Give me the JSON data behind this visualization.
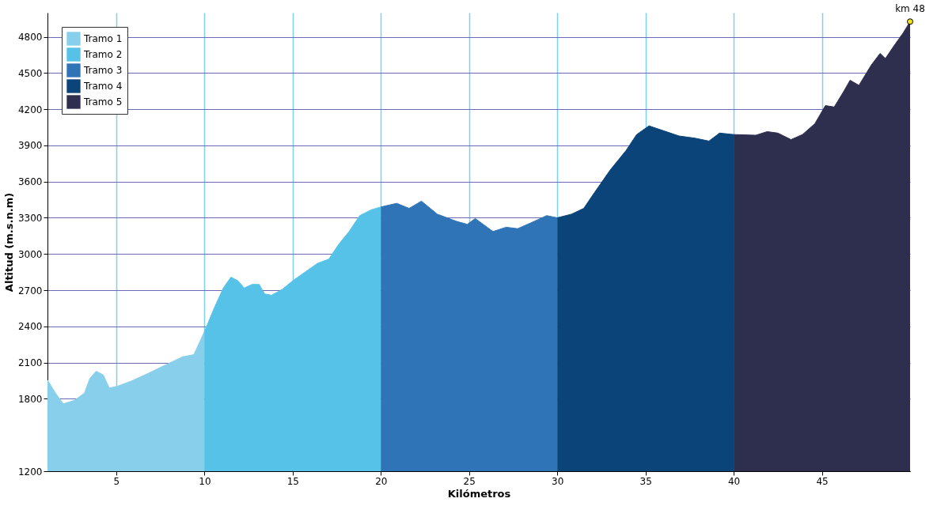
{
  "chart_data": {
    "type": "area",
    "xlabel": "Kilómetros",
    "ylabel": "Altitud (m.s.n.m)",
    "xlim": [
      1.1,
      50
    ],
    "xticks": [
      5,
      10,
      15,
      20,
      25,
      30,
      35,
      40,
      45
    ],
    "ylim": [
      1200,
      5000
    ],
    "yticks": [
      1200,
      1800,
      2100,
      2400,
      2700,
      3000,
      3300,
      3600,
      3900,
      4200,
      4500,
      4800
    ],
    "grid": true,
    "legend": "top left",
    "series": [
      {
        "name": "Tramo 1",
        "color": "#87cfea",
        "x": [
          1.1,
          1.55,
          2.0,
          2.64,
          3.2,
          3.5,
          3.86,
          4.26,
          4.6,
          5.04,
          5.9,
          6.8,
          7.9,
          8.76,
          9.4,
          10
        ],
        "values": [
          1956,
          1848,
          1758,
          1788,
          1848,
          1968,
          2028,
          1998,
          1890,
          1902,
          1950,
          2010,
          2088,
          2148,
          2166,
          2358
        ]
      },
      {
        "name": "Tramo 2",
        "color": "#56c2e8",
        "x": [
          10,
          10.6,
          11.07,
          11.5,
          11.9,
          12.25,
          12.7,
          13.1,
          13.4,
          13.8,
          14.4,
          15,
          15.7,
          16.4,
          17.05,
          17.6,
          18.2,
          18.8,
          19.45,
          20
        ],
        "values": [
          2358,
          2568,
          2718,
          2808,
          2778,
          2718,
          2748,
          2748,
          2670,
          2658,
          2706,
          2778,
          2850,
          2922,
          2958,
          3078,
          3186,
          3318,
          3366,
          3390
        ]
      },
      {
        "name": "Tramo 3",
        "color": "#3074b8",
        "x": [
          20,
          20.9,
          21.6,
          22.3,
          23.2,
          24.3,
          24.9,
          25.35,
          25.8,
          26.35,
          27.1,
          27.75,
          28.5,
          29.4,
          30
        ],
        "values": [
          3390,
          3420,
          3378,
          3438,
          3330,
          3270,
          3246,
          3294,
          3246,
          3186,
          3222,
          3210,
          3258,
          3318,
          3300
        ]
      },
      {
        "name": "Tramo 4",
        "color": "#0b4479",
        "x": [
          30,
          30.8,
          31.5,
          32,
          33,
          33.9,
          34.5,
          35.2,
          36.05,
          36.9,
          37.8,
          38.6,
          39.2,
          40
        ],
        "values": [
          3300,
          3330,
          3378,
          3486,
          3696,
          3858,
          3990,
          4062,
          4020,
          3978,
          3960,
          3936,
          4002,
          3990
        ]
      },
      {
        "name": "Tramo 5",
        "color": "#2e2f4e",
        "x": [
          40,
          41.25,
          41.9,
          42.5,
          43.25,
          43.9,
          44.6,
          45.2,
          45.7,
          46.2,
          46.6,
          47.1,
          47.8,
          48.3,
          48.6,
          49.1,
          49.6,
          50
        ],
        "values": [
          3990,
          3984,
          4014,
          4002,
          3948,
          3990,
          4080,
          4230,
          4218,
          4338,
          4440,
          4398,
          4566,
          4662,
          4620,
          4728,
          4830,
          4926
        ]
      }
    ],
    "annotations": [
      {
        "text": "km 48",
        "x": 50,
        "y": 4926
      }
    ]
  }
}
